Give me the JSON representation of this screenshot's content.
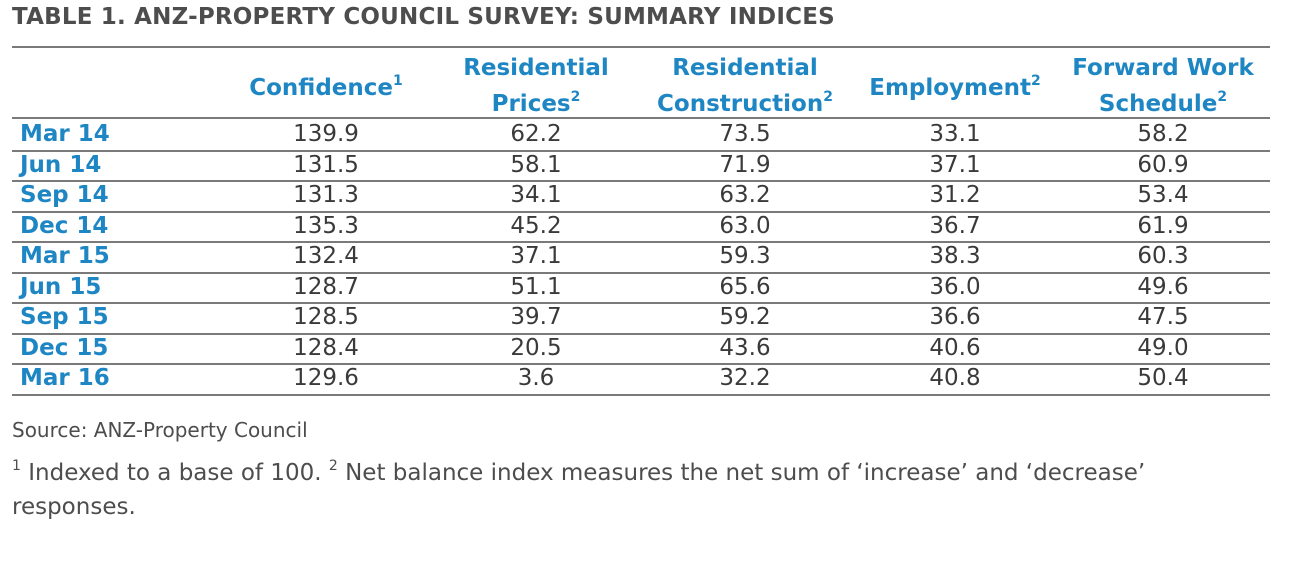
{
  "title": "TABLE 1. ANZ-PROPERTY COUNCIL SURVEY: SUMMARY INDICES",
  "columns": [
    {
      "line1": "",
      "line2": "Confidence",
      "sup": "1"
    },
    {
      "line1": "Residential",
      "line2": "Prices",
      "sup": "2"
    },
    {
      "line1": "Residential",
      "line2": "Construction",
      "sup": "2"
    },
    {
      "line1": "",
      "line2": "Employment",
      "sup": "2"
    },
    {
      "line1": "Forward Work",
      "line2": "Schedule",
      "sup": "2"
    }
  ],
  "rows": [
    {
      "label": "Mar 14",
      "values": [
        "139.9",
        "62.2",
        "73.5",
        "33.1",
        "58.2"
      ]
    },
    {
      "label": "Jun 14",
      "values": [
        "131.5",
        "58.1",
        "71.9",
        "37.1",
        "60.9"
      ]
    },
    {
      "label": "Sep 14",
      "values": [
        "131.3",
        "34.1",
        "63.2",
        "31.2",
        "53.4"
      ]
    },
    {
      "label": "Dec 14",
      "values": [
        "135.3",
        "45.2",
        "63.0",
        "36.7",
        "61.9"
      ]
    },
    {
      "label": "Mar 15",
      "values": [
        "132.4",
        "37.1",
        "59.3",
        "38.3",
        "60.3"
      ]
    },
    {
      "label": "Jun 15",
      "values": [
        "128.7",
        "51.1",
        "65.6",
        "36.0",
        "49.6"
      ]
    },
    {
      "label": "Sep 15",
      "values": [
        "128.5",
        "39.7",
        "59.2",
        "36.6",
        "47.5"
      ]
    },
    {
      "label": "Dec 15",
      "values": [
        "128.4",
        "20.5",
        "43.6",
        "40.6",
        "49.0"
      ]
    },
    {
      "label": "Mar 16",
      "values": [
        "129.6",
        "3.6",
        "32.2",
        "40.8",
        "50.4"
      ]
    }
  ],
  "source": "Source: ANZ-Property Council",
  "footnote": {
    "sup1": "1",
    "text1": " Indexed to a base of 100. ",
    "sup2": "2",
    "text2": " Net balance index measures the net sum of ‘increase’ and ‘decrease’ responses."
  },
  "colors": {
    "header": "#1f86c4",
    "rule": "#7a7a7a",
    "text": "#3a3a3a"
  }
}
